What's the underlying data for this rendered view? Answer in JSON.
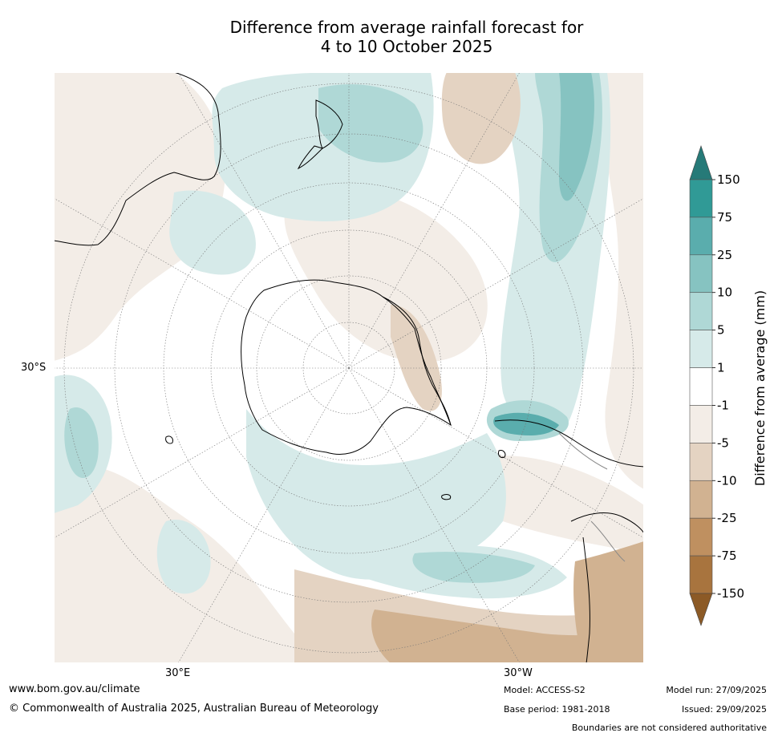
{
  "title": {
    "line1": "Difference from average rainfall forecast for",
    "line2": "4 to 10 October 2025"
  },
  "map": {
    "projection": "south polar stereographic",
    "lat_label": "30°S",
    "lon_labels": {
      "left": "30°E",
      "right": "30°W"
    }
  },
  "colorbar": {
    "label": "Difference from average (mm)",
    "ticks": [
      "150",
      "75",
      "25",
      "10",
      "5",
      "1",
      "-1",
      "-5",
      "-10",
      "-25",
      "-75",
      "-150"
    ],
    "colors": {
      "over": "#267a78",
      "band_75_150": "#309a96",
      "band_25_75": "#5aadad",
      "band_10_25": "#86c3c1",
      "band_5_10": "#afd8d6",
      "band_1_5": "#d6eae9",
      "band_neg1_1": "#ffffff",
      "band_neg5_neg1": "#f3ede7",
      "band_neg10_neg5": "#e4d3c2",
      "band_neg25_neg10": "#d1b291",
      "band_neg75_neg25": "#bf9060",
      "band_neg150_neg75": "#a8743e",
      "under": "#8c5a26"
    }
  },
  "footer": {
    "website": "www.bom.gov.au/climate",
    "copyright": "© Commonwealth of Australia 2025, Australian Bureau of Meteorology",
    "model": "Model: ACCESS-S2",
    "base_period": "Base period: 1981-2018",
    "model_run": "Model run: 27/09/2025",
    "issued": "Issued: 29/09/2025",
    "disclaimer": "Boundaries are not considered authoritative"
  }
}
